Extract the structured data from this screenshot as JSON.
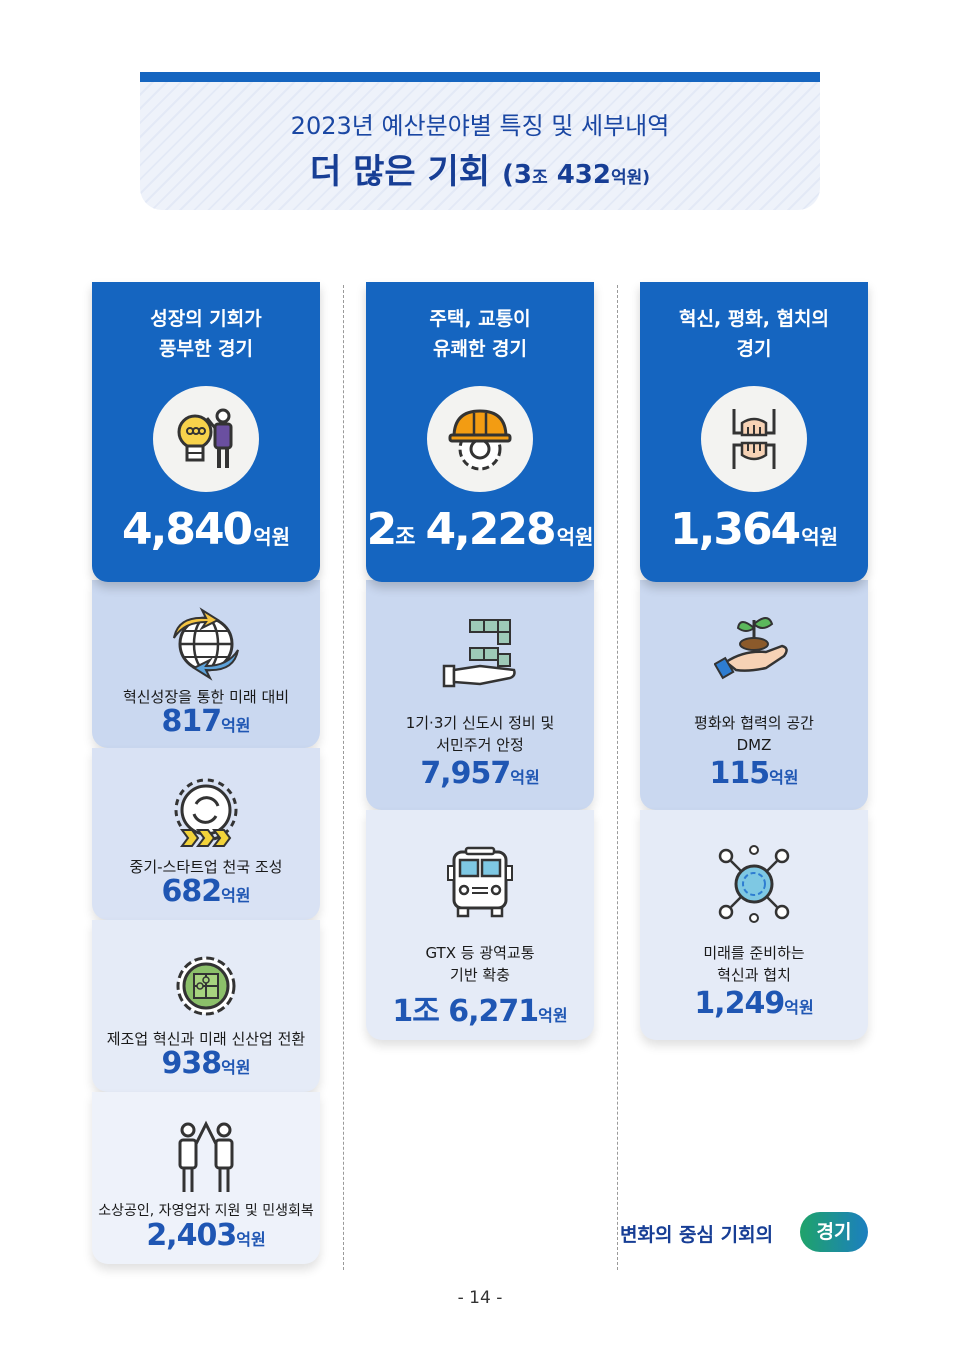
{
  "header": {
    "subtitle": "2023년 예산분야별 특징 및 세부내역",
    "title": "더 많은 기회",
    "total_open": "(3",
    "total_jo": "조",
    "total_num": " 432",
    "total_unit": "억원)"
  },
  "columns": [
    {
      "title_line1": "성장의 기회가",
      "title_line2": "풍부한 경기",
      "icon": "lightbulb-person-icon",
      "amount_jo": "",
      "amount": "4,840",
      "unit": "억원",
      "items": [
        {
          "icon": "globe-arrows-icon",
          "label_line1": "혁신성장을 통한 미래 대비",
          "label_line2": "",
          "amount": "817",
          "unit": "억원"
        },
        {
          "icon": "gear-arrows-icon",
          "label_line1": "중기-스타트업 천국 조성",
          "label_line2": "",
          "amount": "682",
          "unit": "억원"
        },
        {
          "icon": "puzzle-gear-icon",
          "label_line1": "제조업 혁신과 미래 신산업 전환",
          "label_line2": "",
          "amount": "938",
          "unit": "억원"
        },
        {
          "icon": "people-highfive-icon",
          "label_line1": "소상공인, 자영업자 지원 및 민생회복",
          "label_line2": "",
          "amount": "2,403",
          "unit": "억원"
        }
      ]
    },
    {
      "title_line1": "주택, 교통이",
      "title_line2": "유쾌한 경기",
      "icon": "hardhat-gear-icon",
      "amount_jo": "조",
      "amount_pre": "2",
      "amount": "4,228",
      "unit": "억원",
      "items": [
        {
          "icon": "hand-blocks-icon",
          "label_line1": "1기·3기 신도시 정비 및",
          "label_line2": "서민주거 안정",
          "amount": "7,957",
          "unit": "억원"
        },
        {
          "icon": "bus-icon",
          "label_line1": "GTX 등 광역교통",
          "label_line2": "기반 확충",
          "amount": "1조 6,271",
          "unit": "억원"
        }
      ]
    },
    {
      "title_line1": "혁신, 평화, 협치의",
      "title_line2": "경기",
      "icon": "joined-hands-icon",
      "amount_jo": "",
      "amount": "1,364",
      "unit": "억원",
      "items": [
        {
          "icon": "hand-sprout-icon",
          "label_line1": "평화와 협력의 공간",
          "label_line2": "DMZ",
          "amount": "115",
          "unit": "억원"
        },
        {
          "icon": "network-people-icon",
          "label_line1": "미래를 준비하는",
          "label_line2": "혁신과 협치",
          "amount": "1,249",
          "unit": "억원"
        }
      ]
    }
  ],
  "footer": {
    "slogan": "변화의 중심 기회의",
    "badge": "경기",
    "page": "- 14 -"
  },
  "colors": {
    "primary": "#1565c0",
    "amount_blue": "#1f56b3",
    "orange": "#f39c12"
  }
}
